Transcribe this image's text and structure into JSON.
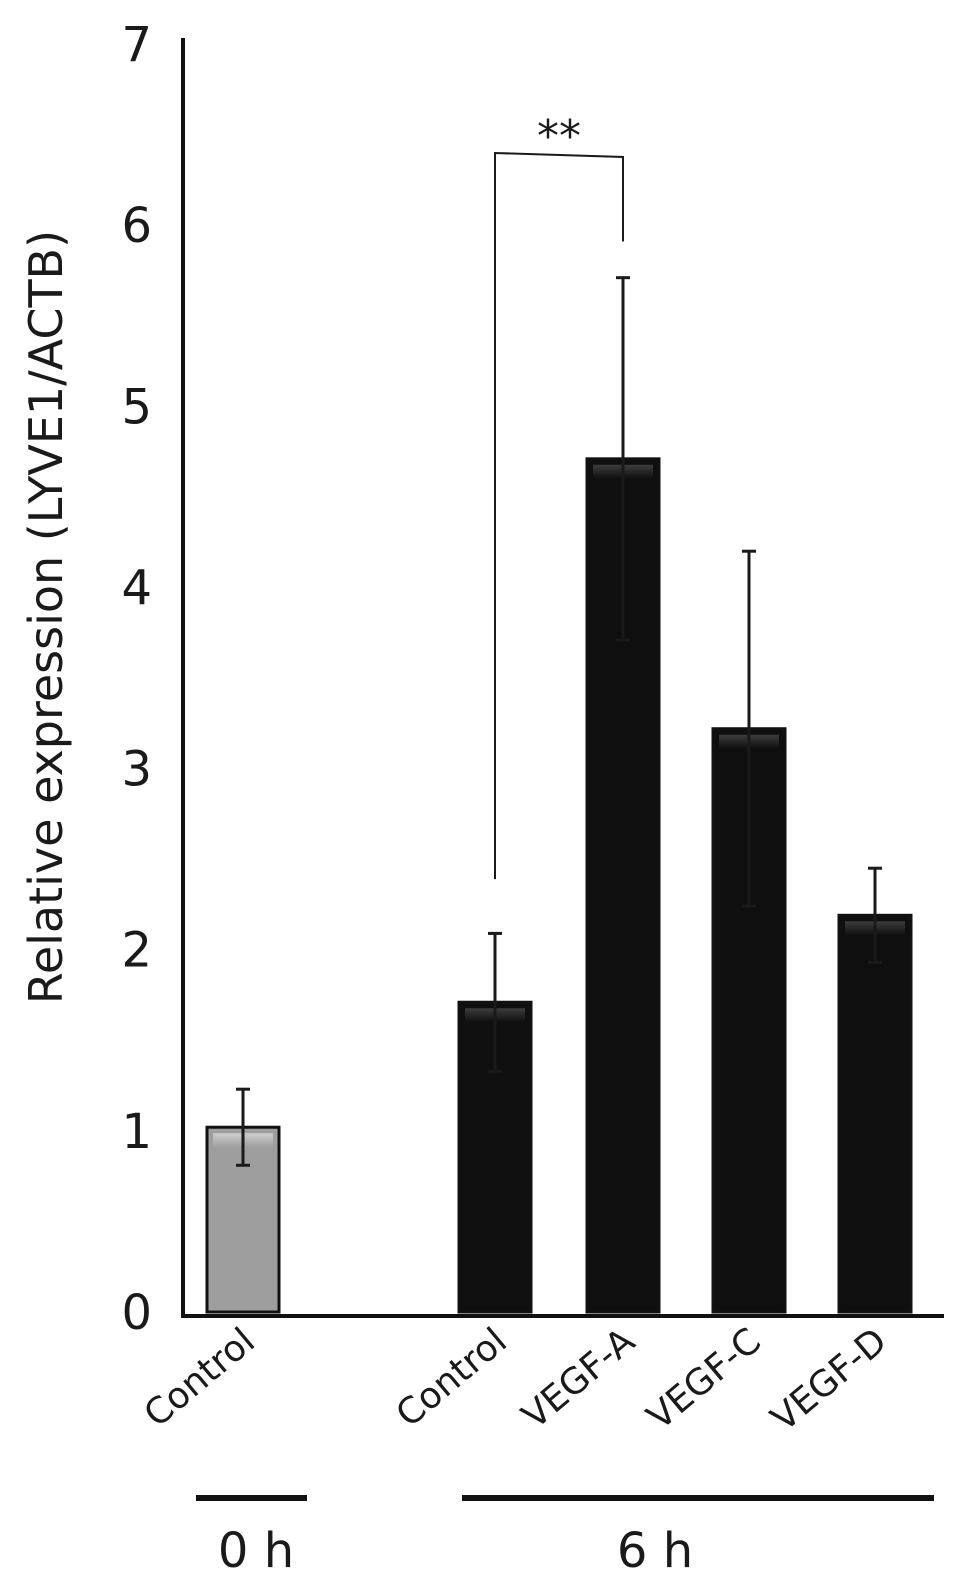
{
  "chart_data": {
    "type": "bar",
    "ylabel": "Relative expression (LYVE1/ACTB)",
    "ylim": [
      0,
      7
    ],
    "yticks": [
      0,
      1,
      2,
      3,
      4,
      5,
      6,
      7
    ],
    "categories": [
      "Control",
      "Control",
      "VEGF-A",
      "VEGF-C",
      "VEGF-D"
    ],
    "values": [
      1.02,
      1.71,
      4.71,
      3.22,
      2.19
    ],
    "error": [
      0.21,
      0.38,
      1.0,
      0.98,
      0.26
    ],
    "groups": [
      {
        "label": "0 h",
        "members": [
          0
        ]
      },
      {
        "label": "6 h",
        "members": [
          1,
          2,
          3,
          4
        ]
      }
    ],
    "significance": [
      {
        "from": 1,
        "to": 2,
        "label": "**"
      }
    ],
    "colors": {
      "bar_0h": "#9e9e9e",
      "bar_6h": "#0f0f0f",
      "axis": "#111111"
    },
    "grid": false,
    "legend": "none"
  }
}
